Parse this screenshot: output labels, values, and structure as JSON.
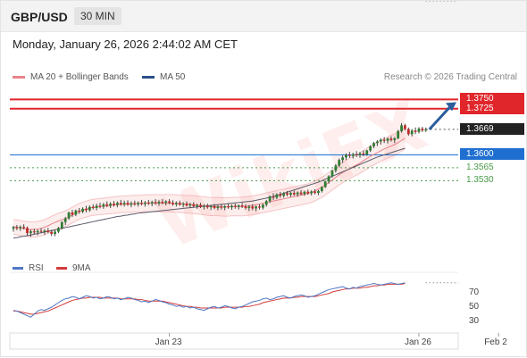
{
  "header": {
    "symbol": "GBP/USD",
    "timeframe": "30 MIN"
  },
  "datetime": "Monday, January 26, 2026 2:44:02 AM CET",
  "legend": {
    "ma20": {
      "label": "MA 20 + Bollinger Bands",
      "color": "#e8848c"
    },
    "ma50": {
      "label": "MA 50",
      "color": "#2b4f8a"
    }
  },
  "credit": "Research © 2026 Trading Central",
  "watermark": "WikiFX",
  "levels": [
    {
      "label": "1.3750",
      "value": 1.375,
      "color": "#e0262b",
      "style": "box"
    },
    {
      "label": "1.3725",
      "value": 1.3725,
      "color": "#e0262b",
      "style": "box"
    },
    {
      "label": "1.3669",
      "value": 1.3669,
      "color": "#222222",
      "style": "box"
    },
    {
      "label": "1.3600",
      "value": 1.36,
      "color": "#1f6fd1",
      "style": "box"
    },
    {
      "label": "1.3565",
      "value": 1.3565,
      "color": "#4a9a4a",
      "style": "plain"
    },
    {
      "label": "1.3530",
      "value": 1.353,
      "color": "#4a9a4a",
      "style": "plain"
    }
  ],
  "rsi_panel": {
    "legend": [
      {
        "label": "RSI",
        "color": "#4e79c4"
      },
      {
        "label": "9MA",
        "color": "#d33b3b"
      }
    ],
    "ticks": [
      "70",
      "50",
      "30"
    ]
  },
  "x_labels": [
    {
      "label": "Jan 23",
      "index": 45
    },
    {
      "label": "Jan 26",
      "index": 117
    },
    {
      "label": "Feb 2",
      "index": 140
    }
  ],
  "chart_data": {
    "type": "candlestick",
    "symbol": "GBP/USD",
    "timeframe": "30 MIN",
    "price_range": [
      1.334,
      1.378
    ],
    "projection_target": 1.375,
    "candles": [
      [
        1.34,
        1.3408,
        1.3392,
        1.3404
      ],
      [
        1.3404,
        1.341,
        1.3396,
        1.3401
      ],
      [
        1.3401,
        1.3409,
        1.3394,
        1.3405
      ],
      [
        1.3405,
        1.3412,
        1.3398,
        1.3402
      ],
      [
        1.3402,
        1.3406,
        1.3382,
        1.3388
      ],
      [
        1.3388,
        1.3398,
        1.3378,
        1.3393
      ],
      [
        1.3393,
        1.34,
        1.3385,
        1.339
      ],
      [
        1.339,
        1.3398,
        1.3382,
        1.3394
      ],
      [
        1.3394,
        1.3401,
        1.3388,
        1.3392
      ],
      [
        1.3392,
        1.3399,
        1.3384,
        1.3395
      ],
      [
        1.3395,
        1.3402,
        1.3388,
        1.3391
      ],
      [
        1.3391,
        1.3397,
        1.338,
        1.3386
      ],
      [
        1.3386,
        1.3396,
        1.338,
        1.3392
      ],
      [
        1.3392,
        1.3405,
        1.3388,
        1.3402
      ],
      [
        1.3402,
        1.342,
        1.3398,
        1.3418
      ],
      [
        1.3418,
        1.3432,
        1.341,
        1.3428
      ],
      [
        1.3428,
        1.3446,
        1.3424,
        1.3444
      ],
      [
        1.3444,
        1.3451,
        1.3432,
        1.3438
      ],
      [
        1.3438,
        1.3452,
        1.3434,
        1.3449
      ],
      [
        1.3449,
        1.3456,
        1.344,
        1.3446
      ],
      [
        1.3446,
        1.3458,
        1.3442,
        1.3454
      ],
      [
        1.3454,
        1.3462,
        1.3444,
        1.345
      ],
      [
        1.345,
        1.3463,
        1.3446,
        1.3459
      ],
      [
        1.3459,
        1.3466,
        1.3452,
        1.3456
      ],
      [
        1.3456,
        1.3468,
        1.345,
        1.3462
      ],
      [
        1.3462,
        1.347,
        1.3455,
        1.346
      ],
      [
        1.346,
        1.347,
        1.3454,
        1.3466
      ],
      [
        1.3466,
        1.3474,
        1.3458,
        1.3462
      ],
      [
        1.3462,
        1.3472,
        1.3456,
        1.3468
      ],
      [
        1.3468,
        1.3475,
        1.346,
        1.3464
      ],
      [
        1.3464,
        1.3474,
        1.3458,
        1.347
      ],
      [
        1.347,
        1.3478,
        1.3462,
        1.3466
      ],
      [
        1.3466,
        1.3476,
        1.346,
        1.347
      ],
      [
        1.347,
        1.3477,
        1.3462,
        1.3465
      ],
      [
        1.3465,
        1.3474,
        1.3458,
        1.3469
      ],
      [
        1.3469,
        1.3476,
        1.3462,
        1.3466
      ],
      [
        1.3466,
        1.3474,
        1.346,
        1.347
      ],
      [
        1.347,
        1.3478,
        1.3463,
        1.3467
      ],
      [
        1.3467,
        1.3475,
        1.346,
        1.3471
      ],
      [
        1.3471,
        1.3478,
        1.3464,
        1.3468
      ],
      [
        1.3468,
        1.3476,
        1.3461,
        1.3472
      ],
      [
        1.3472,
        1.348,
        1.3465,
        1.3469
      ],
      [
        1.3469,
        1.3477,
        1.3462,
        1.3473
      ],
      [
        1.3473,
        1.348,
        1.3466,
        1.347
      ],
      [
        1.347,
        1.3477,
        1.3463,
        1.3474
      ],
      [
        1.3474,
        1.348,
        1.3466,
        1.347
      ],
      [
        1.347,
        1.3477,
        1.3462,
        1.3466
      ],
      [
        1.3466,
        1.3474,
        1.346,
        1.347
      ],
      [
        1.347,
        1.3476,
        1.3462,
        1.3465
      ],
      [
        1.3465,
        1.3472,
        1.3458,
        1.3468
      ],
      [
        1.3468,
        1.3474,
        1.346,
        1.3463
      ],
      [
        1.3463,
        1.347,
        1.3456,
        1.3466
      ],
      [
        1.3466,
        1.3472,
        1.3458,
        1.3461
      ],
      [
        1.3461,
        1.3468,
        1.3454,
        1.3464
      ],
      [
        1.3464,
        1.347,
        1.3456,
        1.3459
      ],
      [
        1.3459,
        1.3466,
        1.3452,
        1.3462
      ],
      [
        1.3462,
        1.3468,
        1.3454,
        1.3458
      ],
      [
        1.3458,
        1.3465,
        1.345,
        1.3461
      ],
      [
        1.3461,
        1.3467,
        1.3453,
        1.3456
      ],
      [
        1.3456,
        1.3464,
        1.345,
        1.346
      ],
      [
        1.346,
        1.3466,
        1.3452,
        1.3457
      ],
      [
        1.3457,
        1.3464,
        1.345,
        1.3461
      ],
      [
        1.3461,
        1.3468,
        1.3454,
        1.3458
      ],
      [
        1.3458,
        1.3466,
        1.3451,
        1.3462
      ],
      [
        1.3462,
        1.3468,
        1.3454,
        1.3459
      ],
      [
        1.3459,
        1.3466,
        1.3452,
        1.3463
      ],
      [
        1.3463,
        1.347,
        1.3456,
        1.346
      ],
      [
        1.346,
        1.3466,
        1.3452,
        1.3456
      ],
      [
        1.3456,
        1.3464,
        1.3448,
        1.346
      ],
      [
        1.346,
        1.3466,
        1.345,
        1.3455
      ],
      [
        1.3455,
        1.3463,
        1.3447,
        1.346
      ],
      [
        1.346,
        1.3466,
        1.3452,
        1.3457
      ],
      [
        1.3457,
        1.3468,
        1.3452,
        1.3465
      ],
      [
        1.3465,
        1.3478,
        1.346,
        1.3475
      ],
      [
        1.3475,
        1.349,
        1.347,
        1.3487
      ],
      [
        1.3487,
        1.3496,
        1.3478,
        1.3484
      ],
      [
        1.3484,
        1.3496,
        1.348,
        1.3493
      ],
      [
        1.3493,
        1.35,
        1.3484,
        1.3489
      ],
      [
        1.3489,
        1.3499,
        1.3484,
        1.3496
      ],
      [
        1.3496,
        1.3502,
        1.3488,
        1.3492
      ],
      [
        1.3492,
        1.35,
        1.3486,
        1.3497
      ],
      [
        1.3497,
        1.3503,
        1.3489,
        1.3493
      ],
      [
        1.3493,
        1.3501,
        1.3487,
        1.3498
      ],
      [
        1.3498,
        1.3504,
        1.349,
        1.3494
      ],
      [
        1.3494,
        1.3503,
        1.3489,
        1.35
      ],
      [
        1.35,
        1.3506,
        1.3492,
        1.3496
      ],
      [
        1.3496,
        1.3504,
        1.349,
        1.3501
      ],
      [
        1.3501,
        1.3507,
        1.3493,
        1.3497
      ],
      [
        1.3497,
        1.3505,
        1.3491,
        1.3502
      ],
      [
        1.3502,
        1.3515,
        1.3498,
        1.3513
      ],
      [
        1.3513,
        1.353,
        1.351,
        1.3528
      ],
      [
        1.3528,
        1.3545,
        1.3522,
        1.3542
      ],
      [
        1.3542,
        1.356,
        1.3538,
        1.3557
      ],
      [
        1.3557,
        1.3575,
        1.3552,
        1.3571
      ],
      [
        1.3571,
        1.359,
        1.3566,
        1.3586
      ],
      [
        1.3586,
        1.3598,
        1.3578,
        1.3593
      ],
      [
        1.3593,
        1.3604,
        1.3586,
        1.36
      ],
      [
        1.36,
        1.3608,
        1.3592,
        1.3597
      ],
      [
        1.3597,
        1.3606,
        1.359,
        1.3602
      ],
      [
        1.3602,
        1.361,
        1.3594,
        1.3599
      ],
      [
        1.3599,
        1.3608,
        1.3592,
        1.3604
      ],
      [
        1.3604,
        1.3612,
        1.3596,
        1.3601
      ],
      [
        1.3601,
        1.3614,
        1.3597,
        1.3612
      ],
      [
        1.3612,
        1.3626,
        1.3608,
        1.3623
      ],
      [
        1.3623,
        1.3635,
        1.3618,
        1.3632
      ],
      [
        1.3632,
        1.364,
        1.3624,
        1.3636
      ],
      [
        1.3636,
        1.3645,
        1.3628,
        1.3641
      ],
      [
        1.3641,
        1.3648,
        1.3632,
        1.3638
      ],
      [
        1.3638,
        1.3647,
        1.3631,
        1.3644
      ],
      [
        1.3644,
        1.365,
        1.3636,
        1.364
      ],
      [
        1.364,
        1.3648,
        1.3632,
        1.3645
      ],
      [
        1.3645,
        1.3668,
        1.3642,
        1.3664
      ],
      [
        1.3664,
        1.3686,
        1.366,
        1.368
      ],
      [
        1.368,
        1.3684,
        1.3666,
        1.367
      ],
      [
        1.367,
        1.3674,
        1.3652,
        1.3656
      ],
      [
        1.3656,
        1.367,
        1.365,
        1.3666
      ],
      [
        1.3666,
        1.3674,
        1.3656,
        1.3662
      ],
      [
        1.3662,
        1.3675,
        1.3658,
        1.3671
      ],
      [
        1.3671,
        1.3676,
        1.3662,
        1.3666
      ],
      [
        1.3666,
        1.3674,
        1.3662,
        1.3669
      ]
    ],
    "ma20": [
      1.3405,
      1.3404,
      1.3402,
      1.34,
      1.3399,
      1.3398,
      1.3398,
      1.3399,
      1.3401,
      1.3404,
      1.3408,
      1.3413,
      1.3417,
      1.3421,
      1.3424,
      1.3427,
      1.3432,
      1.3437,
      1.3442,
      1.3447,
      1.345,
      1.3453,
      1.3456,
      1.3458,
      1.3459,
      1.346,
      1.3461,
      1.3462,
      1.3463,
      1.3464,
      1.3465,
      1.3466,
      1.3466,
      1.3467,
      1.3467,
      1.3468,
      1.3468,
      1.3468,
      1.3469,
      1.3469,
      1.3469,
      1.3469,
      1.3469,
      1.3469,
      1.3469,
      1.3469,
      1.3469,
      1.3468,
      1.3468,
      1.3467,
      1.3466,
      1.3466,
      1.3465,
      1.3464,
      1.3463,
      1.3462,
      1.3461,
      1.346,
      1.346,
      1.346,
      1.3459,
      1.3459,
      1.3459,
      1.346,
      1.346,
      1.346,
      1.346,
      1.3461,
      1.3462,
      1.3463,
      1.3465,
      1.3467,
      1.3469,
      1.3471,
      1.3473,
      1.3475,
      1.3477,
      1.3479,
      1.3481,
      1.3483,
      1.3485,
      1.3487,
      1.3489,
      1.3491,
      1.3493,
      1.3495,
      1.3498,
      1.3502,
      1.3507,
      1.3512,
      1.3518,
      1.3525,
      1.3532,
      1.3539,
      1.3546,
      1.3552,
      1.3558,
      1.3563,
      1.3568,
      1.3573,
      1.3578,
      1.3584,
      1.359,
      1.3596,
      1.3601,
      1.3606,
      1.3611,
      1.3616,
      1.362,
      1.3624,
      1.3628,
      1.3633,
      1.3639,
      1.3645
    ],
    "ma50": [
      1.3375,
      1.3376,
      1.3378,
      1.338,
      1.3381,
      1.3383,
      1.3385,
      1.3387,
      1.3389,
      1.3391,
      1.3393,
      1.3395,
      1.3397,
      1.3399,
      1.3401,
      1.3403,
      1.3405,
      1.3407,
      1.3409,
      1.3411,
      1.3413,
      1.3415,
      1.3417,
      1.3419,
      1.3421,
      1.3423,
      1.3425,
      1.3427,
      1.3429,
      1.3431,
      1.3433,
      1.3434,
      1.3436,
      1.3437,
      1.3439,
      1.344,
      1.3442,
      1.3443,
      1.3444,
      1.3445,
      1.3446,
      1.3447,
      1.3448,
      1.3449,
      1.345,
      1.3451,
      1.3452,
      1.3453,
      1.3454,
      1.3455,
      1.3456,
      1.3457,
      1.3458,
      1.3459,
      1.346,
      1.3461,
      1.3462,
      1.3463,
      1.3464,
      1.3465,
      1.3466,
      1.3467,
      1.3468,
      1.3469,
      1.347,
      1.3471,
      1.3472,
      1.3473,
      1.3474,
      1.3475,
      1.3477,
      1.3479,
      1.3481,
      1.3483,
      1.3485,
      1.3487,
      1.349,
      1.3493,
      1.3496,
      1.3499,
      1.3502,
      1.3505,
      1.3508,
      1.3511,
      1.3514,
      1.3517,
      1.352,
      1.3523,
      1.3526,
      1.353,
      1.3534,
      1.3538,
      1.3542,
      1.3546,
      1.355,
      1.3554,
      1.3558,
      1.3562,
      1.3566,
      1.357,
      1.3574,
      1.3578,
      1.3582,
      1.3586,
      1.359,
      1.3594,
      1.3597,
      1.36,
      1.3603,
      1.3606,
      1.3609,
      1.3612,
      1.3615,
      1.3618
    ],
    "rsi": {
      "range": [
        20,
        90
      ],
      "rsi": [
        45,
        44,
        42,
        40,
        38,
        36,
        40,
        44,
        46,
        45,
        47,
        49,
        52,
        55,
        58,
        60,
        61,
        63,
        62,
        60,
        62,
        64,
        63,
        61,
        62,
        60,
        61,
        63,
        62,
        60,
        61,
        59,
        60,
        62,
        61,
        59,
        58,
        56,
        57,
        55,
        57,
        59,
        58,
        56,
        55,
        53,
        52,
        50,
        51,
        49,
        50,
        48,
        49,
        47,
        46,
        45,
        47,
        49,
        50,
        48,
        49,
        51,
        50,
        48,
        47,
        49,
        50,
        52,
        54,
        56,
        57,
        58,
        60,
        61,
        59,
        60,
        62,
        63,
        64,
        62,
        61,
        63,
        64,
        65,
        64,
        62,
        63,
        64,
        66,
        68,
        70,
        72,
        73,
        74,
        75,
        76,
        74,
        73,
        75,
        74,
        76,
        77,
        78,
        79,
        80,
        79,
        78,
        79,
        80,
        81,
        80,
        79,
        80,
        81
      ],
      "ma9": [
        44,
        44,
        43,
        42,
        41,
        40,
        40,
        41,
        42,
        43,
        44,
        46,
        48,
        50,
        52,
        54,
        56,
        58,
        59,
        60,
        61,
        61,
        62,
        62,
        62,
        62,
        61,
        61,
        61,
        61,
        61,
        60,
        60,
        60,
        60,
        60,
        59,
        59,
        58,
        57,
        57,
        57,
        57,
        57,
        56,
        55,
        54,
        53,
        52,
        51,
        50,
        50,
        49,
        49,
        48,
        48,
        48,
        48,
        48,
        48,
        48,
        49,
        49,
        49,
        49,
        49,
        49,
        50,
        50,
        51,
        52,
        53,
        55,
        56,
        57,
        58,
        59,
        60,
        61,
        61,
        61,
        62,
        62,
        63,
        63,
        63,
        63,
        63,
        64,
        65,
        66,
        67,
        69,
        70,
        71,
        72,
        73,
        73,
        74,
        74,
        74,
        75,
        75,
        76,
        77,
        77,
        78,
        78,
        79,
        79,
        79,
        79,
        79,
        80
      ],
      "levels": [
        70,
        50,
        30
      ]
    }
  }
}
